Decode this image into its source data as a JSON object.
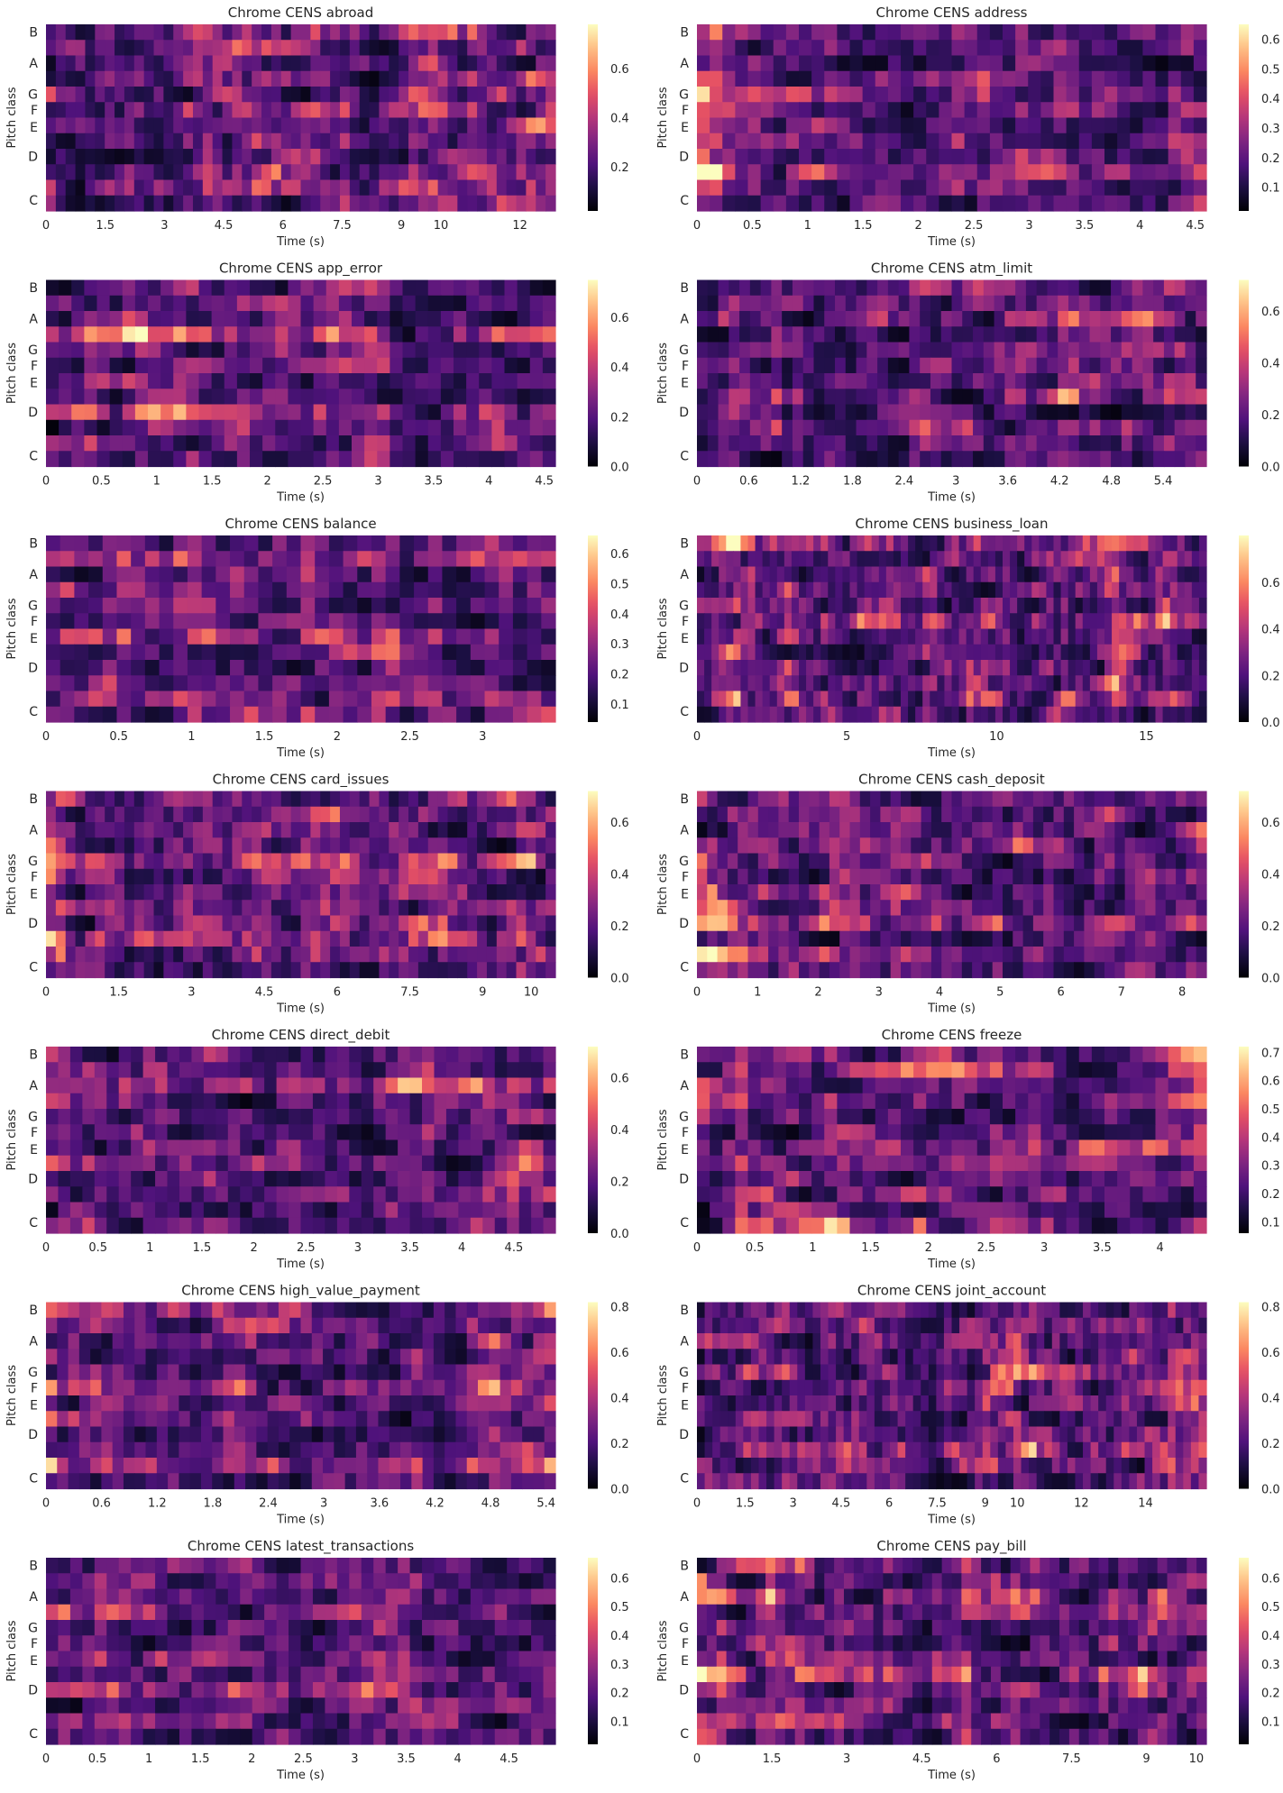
{
  "figure": {
    "pitch_ylabel": "Pitch class",
    "time_xlabel": "Time (s)",
    "pitch_ticks": [
      "C",
      "D",
      "E",
      "F",
      "G",
      "A",
      "B"
    ],
    "colormap": "magma"
  },
  "chart_data": [
    {
      "type": "heatmap",
      "title": "Chrome CENS abroad",
      "xlabel": "Time (s)",
      "ylabel": "Pitch class",
      "xlim": [
        0,
        12.9
      ],
      "xticks": [
        0,
        1.5,
        3,
        4.5,
        6,
        7.5,
        9,
        10,
        12
      ],
      "xtick_labels": [
        "0",
        "1.5",
        "3",
        "4.5",
        "6",
        "7.5",
        "9",
        "10",
        "12"
      ],
      "clim": [
        0.02,
        0.78
      ],
      "cticks": [
        0.2,
        0.4,
        0.6
      ],
      "ctick_labels": [
        "0.2",
        "0.4",
        "0.6"
      ],
      "columns": 52,
      "description_keys": []
    },
    {
      "type": "heatmap",
      "title": "Chrome CENS address",
      "xlabel": "Time (s)",
      "ylabel": "Pitch class",
      "xlim": [
        0,
        4.6
      ],
      "xticks": [
        0,
        0.5,
        1,
        1.5,
        2,
        2.5,
        3,
        3.5,
        4,
        4.5
      ],
      "xtick_labels": [
        "0",
        "0.5",
        "1",
        "1.5",
        "2",
        "2.5",
        "3",
        "3.5",
        "4",
        "4.5"
      ],
      "clim": [
        0.02,
        0.65
      ],
      "cticks": [
        0.1,
        0.2,
        0.3,
        0.4,
        0.5,
        0.6
      ],
      "ctick_labels": [
        "0.1",
        "0.2",
        "0.3",
        "0.4",
        "0.5",
        "0.6"
      ],
      "columns": 40,
      "description_keys": []
    },
    {
      "type": "heatmap",
      "title": "Chrome CENS app_error",
      "xlabel": "Time (s)",
      "ylabel": "Pitch class",
      "xlim": [
        0,
        4.6
      ],
      "xticks": [
        0,
        0.5,
        1,
        1.5,
        2,
        2.5,
        3,
        3.5,
        4,
        4.5
      ],
      "xtick_labels": [
        "0",
        "0.5",
        "1",
        "1.5",
        "2",
        "2.5",
        "3",
        "3.5",
        "4",
        "4.5"
      ],
      "clim": [
        0,
        0.75
      ],
      "cticks": [
        0,
        0.2,
        0.4,
        0.6
      ],
      "ctick_labels": [
        "0.0",
        "0.2",
        "0.4",
        "0.6"
      ],
      "columns": 40,
      "description_keys": []
    },
    {
      "type": "heatmap",
      "title": "Chrome CENS atm_limit",
      "xlabel": "Time (s)",
      "ylabel": "Pitch class",
      "xlim": [
        0,
        5.9
      ],
      "xticks": [
        0,
        0.6,
        1.2,
        1.8,
        2.4,
        3,
        3.6,
        4.2,
        4.8,
        5.4
      ],
      "xtick_labels": [
        "0",
        "0.6",
        "1.2",
        "1.8",
        "2.4",
        "3",
        "3.6",
        "4.2",
        "4.8",
        "5.4"
      ],
      "clim": [
        0,
        0.72
      ],
      "cticks": [
        0,
        0.2,
        0.4,
        0.6
      ],
      "ctick_labels": [
        "0.0",
        "0.2",
        "0.4",
        "0.6"
      ],
      "columns": 48,
      "description_keys": []
    },
    {
      "type": "heatmap",
      "title": "Chrome CENS balance",
      "xlabel": "Time (s)",
      "ylabel": "Pitch class",
      "xlim": [
        0,
        3.5
      ],
      "xticks": [
        0,
        0.5,
        1,
        1.5,
        2,
        2.5,
        3
      ],
      "xtick_labels": [
        "0",
        "0.5",
        "1",
        "1.5",
        "2",
        "2.5",
        "3"
      ],
      "clim": [
        0.04,
        0.66
      ],
      "cticks": [
        0.1,
        0.2,
        0.3,
        0.4,
        0.5,
        0.6
      ],
      "ctick_labels": [
        "0.1",
        "0.2",
        "0.3",
        "0.4",
        "0.5",
        "0.6"
      ],
      "columns": 36,
      "description_keys": []
    },
    {
      "type": "heatmap",
      "title": "Chrome CENS business_loan",
      "xlabel": "Time (s)",
      "ylabel": "Pitch class",
      "xlim": [
        0,
        17
      ],
      "xticks": [
        0,
        5,
        10,
        15
      ],
      "xtick_labels": [
        "0",
        "5",
        "10",
        "15"
      ],
      "clim": [
        0,
        0.8
      ],
      "cticks": [
        0,
        0.2,
        0.4,
        0.6
      ],
      "ctick_labels": [
        "0.0",
        "0.2",
        "0.4",
        "0.6"
      ],
      "columns": 70,
      "description_keys": []
    },
    {
      "type": "heatmap",
      "title": "Chrome CENS card_issues",
      "xlabel": "Time (s)",
      "ylabel": "Pitch class",
      "xlim": [
        0,
        10.5
      ],
      "xticks": [
        0,
        1.5,
        3,
        4.5,
        6,
        7.5,
        9,
        10
      ],
      "xtick_labels": [
        "0",
        "1.5",
        "3",
        "4.5",
        "6",
        "7.5",
        "9",
        "10"
      ],
      "clim": [
        0,
        0.72
      ],
      "cticks": [
        0,
        0.2,
        0.4,
        0.6
      ],
      "ctick_labels": [
        "0.0",
        "0.2",
        "0.4",
        "0.6"
      ],
      "columns": 52,
      "description_keys": []
    },
    {
      "type": "heatmap",
      "title": "Chrome CENS cash_deposit",
      "xlabel": "Time (s)",
      "ylabel": "Pitch class",
      "xlim": [
        0,
        8.4
      ],
      "xticks": [
        0,
        1,
        2,
        3,
        4,
        5,
        6,
        7,
        8
      ],
      "xtick_labels": [
        "0",
        "1",
        "2",
        "3",
        "4",
        "5",
        "6",
        "7",
        "8"
      ],
      "clim": [
        0,
        0.72
      ],
      "cticks": [
        0,
        0.2,
        0.4,
        0.6
      ],
      "ctick_labels": [
        "0.0",
        "0.2",
        "0.4",
        "0.6"
      ],
      "columns": 50,
      "description_keys": []
    },
    {
      "type": "heatmap",
      "title": "Chrome CENS direct_debit",
      "xlabel": "Time (s)",
      "ylabel": "Pitch class",
      "xlim": [
        0,
        4.9
      ],
      "xticks": [
        0,
        0.5,
        1,
        1.5,
        2,
        2.5,
        3,
        3.5,
        4,
        4.5
      ],
      "xtick_labels": [
        "0",
        "0.5",
        "1",
        "1.5",
        "2",
        "2.5",
        "3",
        "3.5",
        "4",
        "4.5"
      ],
      "clim": [
        0,
        0.72
      ],
      "cticks": [
        0,
        0.2,
        0.4,
        0.6
      ],
      "ctick_labels": [
        "0.0",
        "0.2",
        "0.4",
        "0.6"
      ],
      "columns": 42,
      "description_keys": []
    },
    {
      "type": "heatmap",
      "title": "Chrome CENS freeze",
      "xlabel": "Time (s)",
      "ylabel": "Pitch class",
      "xlim": [
        0,
        4.4
      ],
      "xticks": [
        0,
        0.5,
        1,
        1.5,
        2,
        2.5,
        3,
        3.5,
        4
      ],
      "xtick_labels": [
        "0",
        "0.5",
        "1",
        "1.5",
        "2",
        "2.5",
        "3",
        "3.5",
        "4"
      ],
      "clim": [
        0.06,
        0.72
      ],
      "cticks": [
        0.1,
        0.2,
        0.3,
        0.4,
        0.5,
        0.6,
        0.7
      ],
      "ctick_labels": [
        "0.1",
        "0.2",
        "0.3",
        "0.4",
        "0.5",
        "0.6",
        "0.7"
      ],
      "columns": 40,
      "description_keys": []
    },
    {
      "type": "heatmap",
      "title": "Chrome CENS high_value_payment",
      "xlabel": "Time (s)",
      "ylabel": "Pitch class",
      "xlim": [
        0,
        5.5
      ],
      "xticks": [
        0,
        0.6,
        1.2,
        1.8,
        2.4,
        3,
        3.6,
        4.2,
        4.8,
        5.4
      ],
      "xtick_labels": [
        "0",
        "0.6",
        "1.2",
        "1.8",
        "2.4",
        "3",
        "3.6",
        "4.2",
        "4.8",
        "5.4"
      ],
      "clim": [
        0,
        0.82
      ],
      "cticks": [
        0,
        0.2,
        0.4,
        0.6,
        0.8
      ],
      "ctick_labels": [
        "0.0",
        "0.2",
        "0.4",
        "0.6",
        "0.8"
      ],
      "columns": 46,
      "description_keys": []
    },
    {
      "type": "heatmap",
      "title": "Chrome CENS joint_account",
      "xlabel": "Time (s)",
      "ylabel": "Pitch class",
      "xlim": [
        0,
        15.9
      ],
      "xticks": [
        0,
        1.5,
        3,
        4.5,
        6,
        7.5,
        9,
        10,
        12,
        14
      ],
      "xtick_labels": [
        "0",
        "1.5",
        "3",
        "4.5",
        "6",
        "7.5",
        "9",
        "10",
        "12",
        "14"
      ],
      "clim": [
        0,
        0.82
      ],
      "cticks": [
        0,
        0.2,
        0.4,
        0.6,
        0.8
      ],
      "ctick_labels": [
        "0.0",
        "0.2",
        "0.4",
        "0.6",
        "0.8"
      ],
      "columns": 66,
      "description_keys": []
    },
    {
      "type": "heatmap",
      "title": "Chrome CENS latest_transactions",
      "xlabel": "Time (s)",
      "ylabel": "Pitch class",
      "xlim": [
        0,
        4.95
      ],
      "xticks": [
        0,
        0.5,
        1,
        1.5,
        2,
        2.5,
        3,
        3.5,
        4,
        4.5
      ],
      "xtick_labels": [
        "0",
        "0.5",
        "1",
        "1.5",
        "2",
        "2.5",
        "3",
        "3.5",
        "4",
        "4.5"
      ],
      "clim": [
        0.02,
        0.67
      ],
      "cticks": [
        0.1,
        0.2,
        0.3,
        0.4,
        0.5,
        0.6
      ],
      "ctick_labels": [
        "0.1",
        "0.2",
        "0.3",
        "0.4",
        "0.5",
        "0.6"
      ],
      "columns": 42,
      "description_keys": []
    },
    {
      "type": "heatmap",
      "title": "Chrome CENS pay_bill",
      "xlabel": "Time (s)",
      "ylabel": "Pitch class",
      "xlim": [
        0,
        10.2
      ],
      "xticks": [
        0,
        1.5,
        3,
        4.5,
        6,
        7.5,
        9,
        10
      ],
      "xtick_labels": [
        "0",
        "1.5",
        "3",
        "4.5",
        "6",
        "7.5",
        "9",
        "10"
      ],
      "clim": [
        0.02,
        0.67
      ],
      "cticks": [
        0.1,
        0.2,
        0.3,
        0.4,
        0.5,
        0.6
      ],
      "ctick_labels": [
        "0.1",
        "0.2",
        "0.3",
        "0.4",
        "0.5",
        "0.6"
      ],
      "columns": 52,
      "description_keys": []
    }
  ]
}
